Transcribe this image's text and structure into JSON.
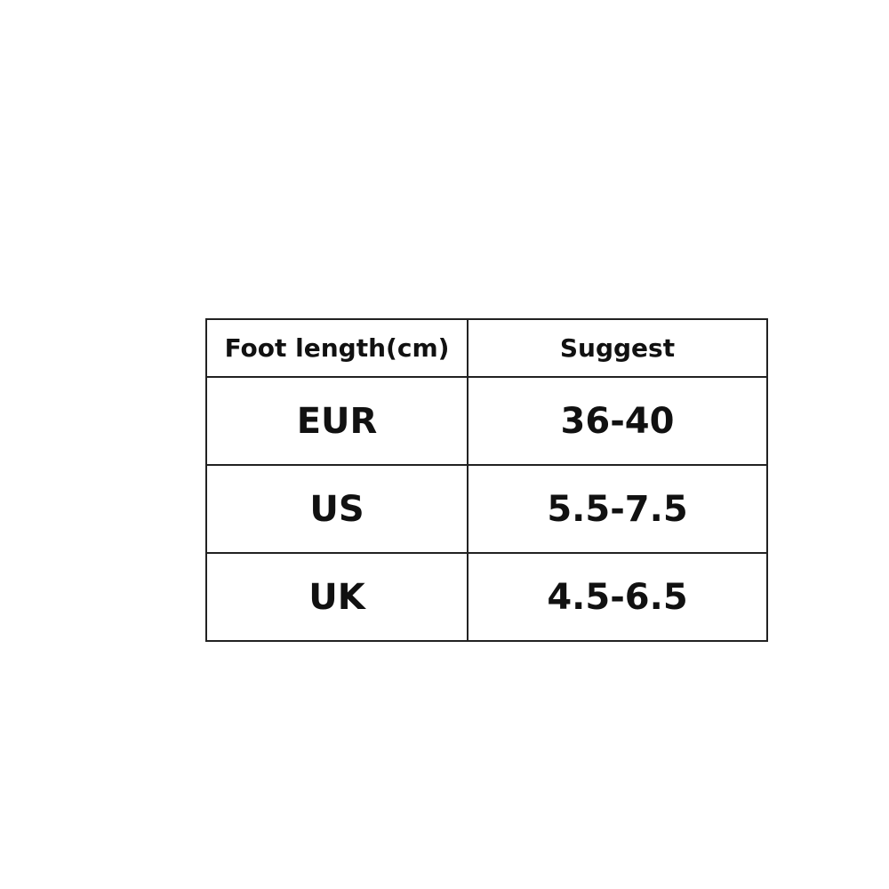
{
  "size_table": {
    "headers": [
      "Foot length(cm)",
      "Suggest"
    ],
    "rows": [
      [
        "EUR",
        "36-40"
      ],
      [
        "US",
        "5.5-7.5"
      ],
      [
        "UK",
        "4.5-6.5"
      ]
    ]
  }
}
